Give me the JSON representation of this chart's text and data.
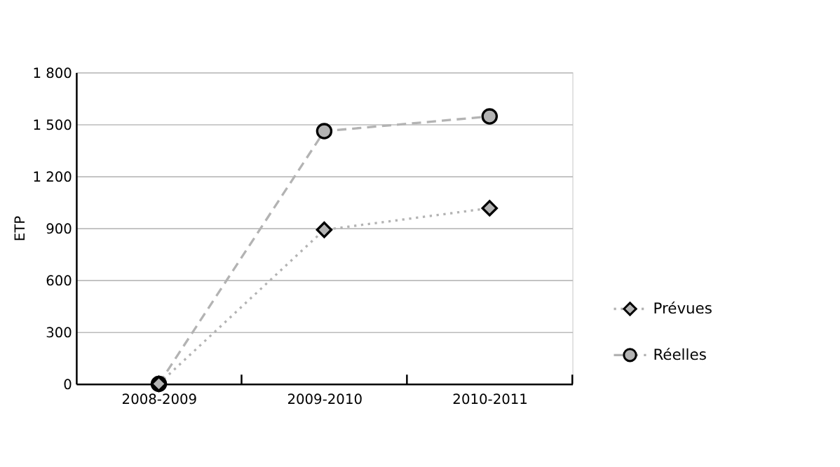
{
  "chart_data": {
    "type": "line",
    "ylabel": "ETP",
    "categories": [
      "2008-2009",
      "2009-2010",
      "2010-2011"
    ],
    "series": [
      {
        "name": "Prévues",
        "color": "#b3b3b3",
        "values": [
          0,
          890,
          1015
        ],
        "marker": "diamond",
        "line_style": "dotted"
      },
      {
        "name": "Réelles",
        "color": "#b3b3b3",
        "values": [
          0,
          1460,
          1545
        ],
        "marker": "circle",
        "line_style": "dashed"
      }
    ],
    "ylim": [
      0,
      1800
    ],
    "yticks": [
      {
        "value": 0,
        "label": "0"
      },
      {
        "value": 300,
        "label": "300"
      },
      {
        "value": 600,
        "label": "600"
      },
      {
        "value": 900,
        "label": "900"
      },
      {
        "value": 1200,
        "label": "1 200"
      },
      {
        "value": 1500,
        "label": "1 500"
      },
      {
        "value": 1800,
        "label": "1 800"
      }
    ],
    "grid": "y",
    "legend": "right"
  }
}
